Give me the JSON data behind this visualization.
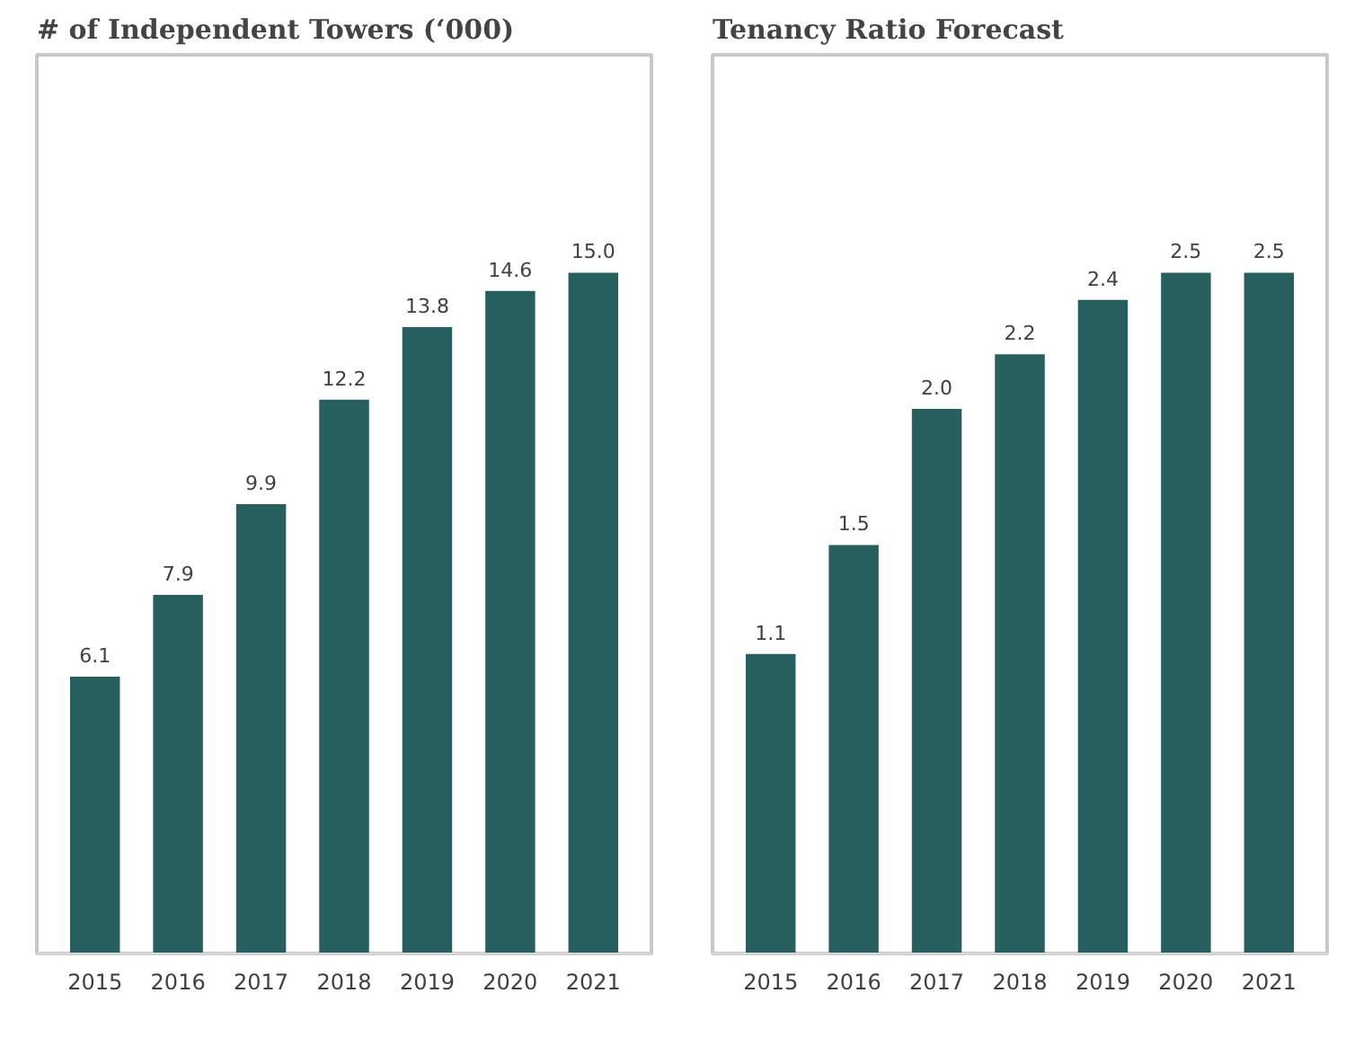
{
  "chart_data": [
    {
      "type": "bar",
      "title": "# of Independent Towers (‘000)",
      "categories": [
        "2015",
        "2016",
        "2017",
        "2018",
        "2019",
        "2020",
        "2021"
      ],
      "values": [
        6.1,
        7.9,
        9.9,
        12.2,
        13.8,
        14.6,
        15.0
      ],
      "value_labels": [
        "6.1",
        "7.9",
        "9.9",
        "12.2",
        "13.8",
        "14.6",
        "15.0"
      ],
      "color": "#265f5e"
    },
    {
      "type": "bar",
      "title": "Tenancy Ratio Forecast",
      "categories": [
        "2015",
        "2016",
        "2017",
        "2018",
        "2019",
        "2020",
        "2021"
      ],
      "values": [
        1.1,
        1.5,
        2.0,
        2.2,
        2.4,
        2.5,
        2.5
      ],
      "value_labels": [
        "1.1",
        "1.5",
        "2.0",
        "2.2",
        "2.4",
        "2.5",
        "2.5"
      ],
      "color": "#265f5e"
    }
  ]
}
